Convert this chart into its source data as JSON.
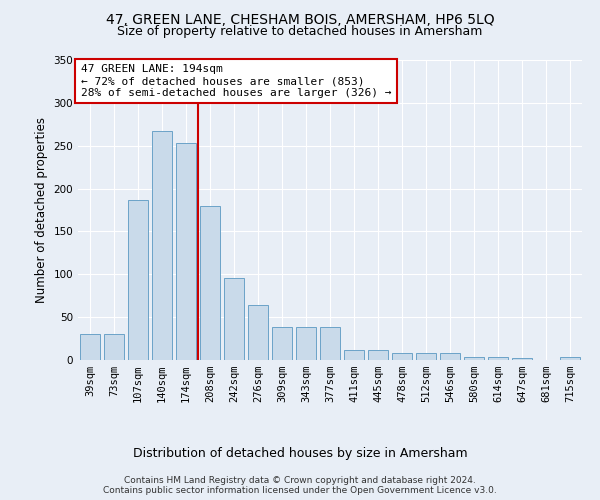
{
  "title": "47, GREEN LANE, CHESHAM BOIS, AMERSHAM, HP6 5LQ",
  "subtitle": "Size of property relative to detached houses in Amersham",
  "xlabel": "Distribution of detached houses by size in Amersham",
  "ylabel": "Number of detached properties",
  "categories": [
    "39sqm",
    "73sqm",
    "107sqm",
    "140sqm",
    "174sqm",
    "208sqm",
    "242sqm",
    "276sqm",
    "309sqm",
    "343sqm",
    "377sqm",
    "411sqm",
    "445sqm",
    "478sqm",
    "512sqm",
    "546sqm",
    "580sqm",
    "614sqm",
    "647sqm",
    "681sqm",
    "715sqm"
  ],
  "values": [
    30,
    30,
    187,
    267,
    253,
    180,
    96,
    64,
    38,
    38,
    38,
    12,
    12,
    8,
    8,
    8,
    4,
    3,
    2,
    0,
    3
  ],
  "bar_color": "#c9daea",
  "bar_edge_color": "#6ba3c8",
  "vline_x_index": 5,
  "vline_color": "#cc0000",
  "annotation_text": "47 GREEN LANE: 194sqm\n← 72% of detached houses are smaller (853)\n28% of semi-detached houses are larger (326) →",
  "annotation_box_color": "#ffffff",
  "annotation_box_edge_color": "#cc0000",
  "ylim": [
    0,
    350
  ],
  "yticks": [
    0,
    50,
    100,
    150,
    200,
    250,
    300,
    350
  ],
  "bg_color": "#e8eef6",
  "plot_bg_color": "#e8eef6",
  "footer_text": "Contains HM Land Registry data © Crown copyright and database right 2024.\nContains public sector information licensed under the Open Government Licence v3.0.",
  "title_fontsize": 10,
  "subtitle_fontsize": 9,
  "xlabel_fontsize": 9,
  "ylabel_fontsize": 8.5,
  "tick_fontsize": 7.5,
  "annotation_fontsize": 8,
  "footer_fontsize": 6.5
}
